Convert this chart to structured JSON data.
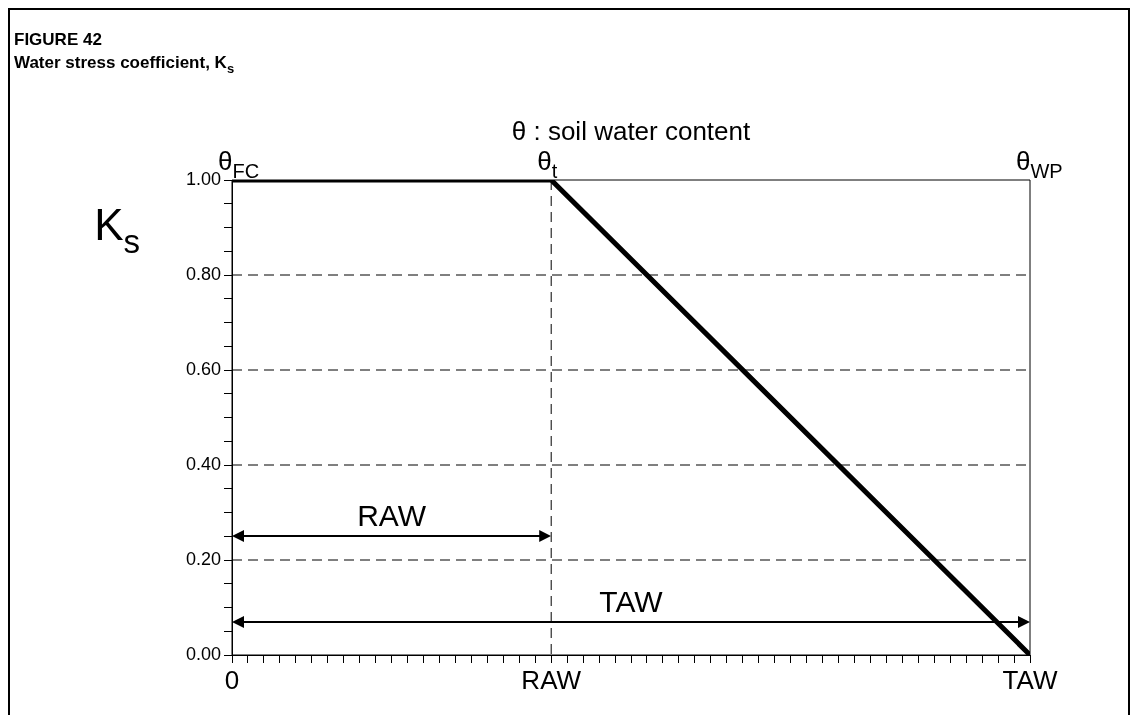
{
  "chart_data": {
    "type": "line",
    "title": "FIGURE 42",
    "subtitle": "Water stress coefficient, K$_{s}$",
    "x2label": "θ : soil water content",
    "ylabel": "K$_{s}$",
    "categories": [
      "0",
      null,
      null,
      null,
      null,
      null,
      null,
      null,
      null,
      null,
      null,
      null,
      null,
      null,
      null,
      null,
      null,
      null,
      null,
      null,
      "RAW",
      null,
      null,
      null,
      null,
      null,
      null,
      null,
      null,
      null,
      null,
      null,
      null,
      null,
      null,
      null,
      null,
      null,
      null,
      null,
      null,
      null,
      null,
      null,
      null,
      null,
      null,
      null,
      null,
      null,
      "TAW"
    ],
    "series": [
      {
        "color": "#000000",
        "x": [
          "0",
          "RAW",
          "TAW"
        ],
        "values": [
          1,
          1,
          0
        ]
      }
    ],
    "ylim": [
      0,
      1
    ],
    "yticks": [
      {
        "value": 0,
        "label": "0.00"
      },
      {
        "value": 0.05,
        "label": null
      },
      {
        "value": 0.1,
        "label": null
      },
      {
        "value": 0.15,
        "label": null
      },
      {
        "value": 0.2,
        "label": "0.20"
      },
      {
        "value": 0.25,
        "label": null
      },
      {
        "value": 0.3,
        "label": null
      },
      {
        "value": 0.35,
        "label": null
      },
      {
        "value": 0.4,
        "label": "0.40"
      },
      {
        "value": 0.45,
        "label": null
      },
      {
        "value": 0.5,
        "label": null
      },
      {
        "value": 0.55,
        "label": null
      },
      {
        "value": 0.6,
        "label": "0.60"
      },
      {
        "value": 0.65,
        "label": null
      },
      {
        "value": 0.7,
        "label": null
      },
      {
        "value": 0.75,
        "label": null
      },
      {
        "value": 0.8,
        "label": "0.80"
      },
      {
        "value": 0.85,
        "label": null
      },
      {
        "value": 0.9,
        "label": null
      },
      {
        "value": 0.95,
        "label": null
      },
      {
        "value": 1,
        "label": "1.00"
      }
    ],
    "grid": "y",
    "line_style": "solid",
    "ref_lines": [
      {
        "axis": "x",
        "value": "RAW",
        "line_style": "dashed"
      }
    ],
    "annotations": [
      "θ$_{FC}$",
      "θ$_{t}$",
      "θ$_{WP}$",
      "RAW",
      "TAW"
    ]
  }
}
